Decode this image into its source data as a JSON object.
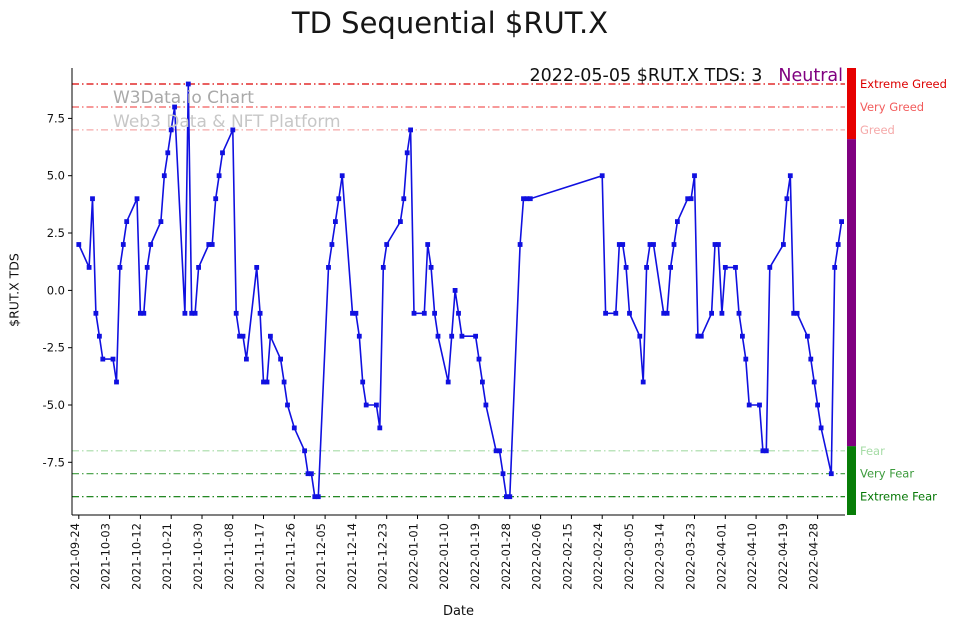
{
  "title": "TD Sequential $RUT.X",
  "watermark": {
    "line1": "W3Data.io Chart",
    "line2": "Web3 Data & NFT Platform"
  },
  "annotation": {
    "text": "2022-05-05 $RUT.X TDS: 3",
    "sentiment": "Neutral",
    "sentiment_color": "#800080"
  },
  "chart_data": {
    "type": "line",
    "title": "TD Sequential $RUT.X",
    "xlabel": "Date",
    "ylabel": "$RUT.X TDS",
    "ylim": [
      -9.8,
      9.7
    ],
    "x_domain": [
      "2021-09-22",
      "2022-05-06"
    ],
    "grid": false,
    "yticks": [
      7.5,
      5.0,
      2.5,
      0.0,
      -2.5,
      -5.0,
      -7.5
    ],
    "xticks": [
      "2021-09-24",
      "2021-10-03",
      "2021-10-12",
      "2021-10-21",
      "2021-10-30",
      "2021-11-08",
      "2021-11-17",
      "2021-11-26",
      "2021-12-05",
      "2021-12-14",
      "2021-12-23",
      "2022-01-01",
      "2022-01-10",
      "2022-01-19",
      "2022-01-28",
      "2022-02-06",
      "2022-02-15",
      "2022-02-24",
      "2022-03-05",
      "2022-03-14",
      "2022-03-23",
      "2022-04-01",
      "2022-04-10",
      "2022-04-19",
      "2022-04-28"
    ],
    "reference_lines": [
      {
        "label": "Extreme Greed",
        "value": 9,
        "color": "#dc0000"
      },
      {
        "label": "Very Greed",
        "value": 8,
        "color": "#f25c5c"
      },
      {
        "label": "Greed",
        "value": 7,
        "color": "#f5a9a9"
      },
      {
        "label": "Fear",
        "value": -7,
        "color": "#a6dca6"
      },
      {
        "label": "Very Fear",
        "value": -8,
        "color": "#3d9b3d"
      },
      {
        "label": "Extreme Fear",
        "value": -9,
        "color": "#067806"
      }
    ],
    "gauge": {
      "segments": [
        {
          "from": 9.7,
          "to": 6.6,
          "color": "#e60000"
        },
        {
          "from": 6.6,
          "to": -6.8,
          "color": "#800080"
        },
        {
          "from": -6.8,
          "to": -9.8,
          "color": "#077d07"
        }
      ]
    },
    "series": [
      {
        "name": "$RUT.X TDS",
        "color": "#1010e0",
        "marker": "square",
        "points": [
          [
            "2021-09-24",
            2
          ],
          [
            "2021-09-27",
            1
          ],
          [
            "2021-09-28",
            4
          ],
          [
            "2021-09-29",
            -1
          ],
          [
            "2021-09-30",
            -2
          ],
          [
            "2021-10-01",
            -3
          ],
          [
            "2021-10-04",
            -3
          ],
          [
            "2021-10-05",
            -4
          ],
          [
            "2021-10-06",
            1
          ],
          [
            "2021-10-07",
            2
          ],
          [
            "2021-10-08",
            3
          ],
          [
            "2021-10-11",
            4
          ],
          [
            "2021-10-12",
            -1
          ],
          [
            "2021-10-13",
            -1
          ],
          [
            "2021-10-14",
            1
          ],
          [
            "2021-10-15",
            2
          ],
          [
            "2021-10-18",
            3
          ],
          [
            "2021-10-19",
            5
          ],
          [
            "2021-10-20",
            6
          ],
          [
            "2021-10-21",
            7
          ],
          [
            "2021-10-22",
            8
          ],
          [
            "2021-10-25",
            -1
          ],
          [
            "2021-10-26",
            9
          ],
          [
            "2021-10-27",
            -1
          ],
          [
            "2021-10-28",
            -1
          ],
          [
            "2021-10-29",
            1
          ],
          [
            "2021-11-01",
            2
          ],
          [
            "2021-11-02",
            2
          ],
          [
            "2021-11-03",
            4
          ],
          [
            "2021-11-04",
            5
          ],
          [
            "2021-11-05",
            6
          ],
          [
            "2021-11-08",
            7
          ],
          [
            "2021-11-09",
            -1
          ],
          [
            "2021-11-10",
            -2
          ],
          [
            "2021-11-11",
            -2
          ],
          [
            "2021-11-12",
            -3
          ],
          [
            "2021-11-15",
            1
          ],
          [
            "2021-11-16",
            -1
          ],
          [
            "2021-11-17",
            -4
          ],
          [
            "2021-11-18",
            -4
          ],
          [
            "2021-11-19",
            -2
          ],
          [
            "2021-11-22",
            -3
          ],
          [
            "2021-11-23",
            -4
          ],
          [
            "2021-11-24",
            -5
          ],
          [
            "2021-11-26",
            -6
          ],
          [
            "2021-11-29",
            -7
          ],
          [
            "2021-11-30",
            -8
          ],
          [
            "2021-12-01",
            -8
          ],
          [
            "2021-12-02",
            -9
          ],
          [
            "2021-12-03",
            -9
          ],
          [
            "2021-12-06",
            1
          ],
          [
            "2021-12-07",
            2
          ],
          [
            "2021-12-08",
            3
          ],
          [
            "2021-12-09",
            4
          ],
          [
            "2021-12-10",
            5
          ],
          [
            "2021-12-13",
            -1
          ],
          [
            "2021-12-14",
            -1
          ],
          [
            "2021-12-15",
            -2
          ],
          [
            "2021-12-16",
            -4
          ],
          [
            "2021-12-17",
            -5
          ],
          [
            "2021-12-20",
            -5
          ],
          [
            "2021-12-21",
            -6
          ],
          [
            "2021-12-22",
            1
          ],
          [
            "2021-12-23",
            2
          ],
          [
            "2021-12-27",
            3
          ],
          [
            "2021-12-28",
            4
          ],
          [
            "2021-12-29",
            6
          ],
          [
            "2021-12-30",
            7
          ],
          [
            "2021-12-31",
            -1
          ],
          [
            "2022-01-03",
            -1
          ],
          [
            "2022-01-04",
            2
          ],
          [
            "2022-01-05",
            1
          ],
          [
            "2022-01-06",
            -1
          ],
          [
            "2022-01-07",
            -2
          ],
          [
            "2022-01-10",
            -4
          ],
          [
            "2022-01-11",
            -2
          ],
          [
            "2022-01-12",
            0
          ],
          [
            "2022-01-13",
            -1
          ],
          [
            "2022-01-14",
            -2
          ],
          [
            "2022-01-18",
            -2
          ],
          [
            "2022-01-19",
            -3
          ],
          [
            "2022-01-20",
            -4
          ],
          [
            "2022-01-21",
            -5
          ],
          [
            "2022-01-24",
            -7
          ],
          [
            "2022-01-25",
            -7
          ],
          [
            "2022-01-26",
            -8
          ],
          [
            "2022-01-27",
            -9
          ],
          [
            "2022-01-28",
            -9
          ],
          [
            "2022-01-31",
            2
          ],
          [
            "2022-02-01",
            4
          ],
          [
            "2022-02-02",
            4
          ],
          [
            "2022-02-03",
            4
          ],
          [
            "2022-02-24",
            5
          ],
          [
            "2022-02-25",
            -1
          ],
          [
            "2022-02-28",
            -1
          ],
          [
            "2022-03-01",
            2
          ],
          [
            "2022-03-02",
            2
          ],
          [
            "2022-03-03",
            1
          ],
          [
            "2022-03-04",
            -1
          ],
          [
            "2022-03-07",
            -2
          ],
          [
            "2022-03-08",
            -4
          ],
          [
            "2022-03-09",
            1
          ],
          [
            "2022-03-10",
            2
          ],
          [
            "2022-03-11",
            2
          ],
          [
            "2022-03-14",
            -1
          ],
          [
            "2022-03-15",
            -1
          ],
          [
            "2022-03-16",
            1
          ],
          [
            "2022-03-17",
            2
          ],
          [
            "2022-03-18",
            3
          ],
          [
            "2022-03-21",
            4
          ],
          [
            "2022-03-22",
            4
          ],
          [
            "2022-03-23",
            5
          ],
          [
            "2022-03-24",
            -2
          ],
          [
            "2022-03-25",
            -2
          ],
          [
            "2022-03-28",
            -1
          ],
          [
            "2022-03-29",
            2
          ],
          [
            "2022-03-30",
            2
          ],
          [
            "2022-03-31",
            -1
          ],
          [
            "2022-04-01",
            1
          ],
          [
            "2022-04-04",
            1
          ],
          [
            "2022-04-05",
            -1
          ],
          [
            "2022-04-06",
            -2
          ],
          [
            "2022-04-07",
            -3
          ],
          [
            "2022-04-08",
            -5
          ],
          [
            "2022-04-11",
            -5
          ],
          [
            "2022-04-12",
            -7
          ],
          [
            "2022-04-13",
            -7
          ],
          [
            "2022-04-14",
            1
          ],
          [
            "2022-04-18",
            2
          ],
          [
            "2022-04-19",
            4
          ],
          [
            "2022-04-20",
            5
          ],
          [
            "2022-04-21",
            -1
          ],
          [
            "2022-04-22",
            -1
          ],
          [
            "2022-04-25",
            -2
          ],
          [
            "2022-04-26",
            -3
          ],
          [
            "2022-04-27",
            -4
          ],
          [
            "2022-04-28",
            -5
          ],
          [
            "2022-04-29",
            -6
          ],
          [
            "2022-05-02",
            -8
          ],
          [
            "2022-05-03",
            1
          ],
          [
            "2022-05-04",
            2
          ],
          [
            "2022-05-05",
            3
          ]
        ]
      }
    ]
  }
}
